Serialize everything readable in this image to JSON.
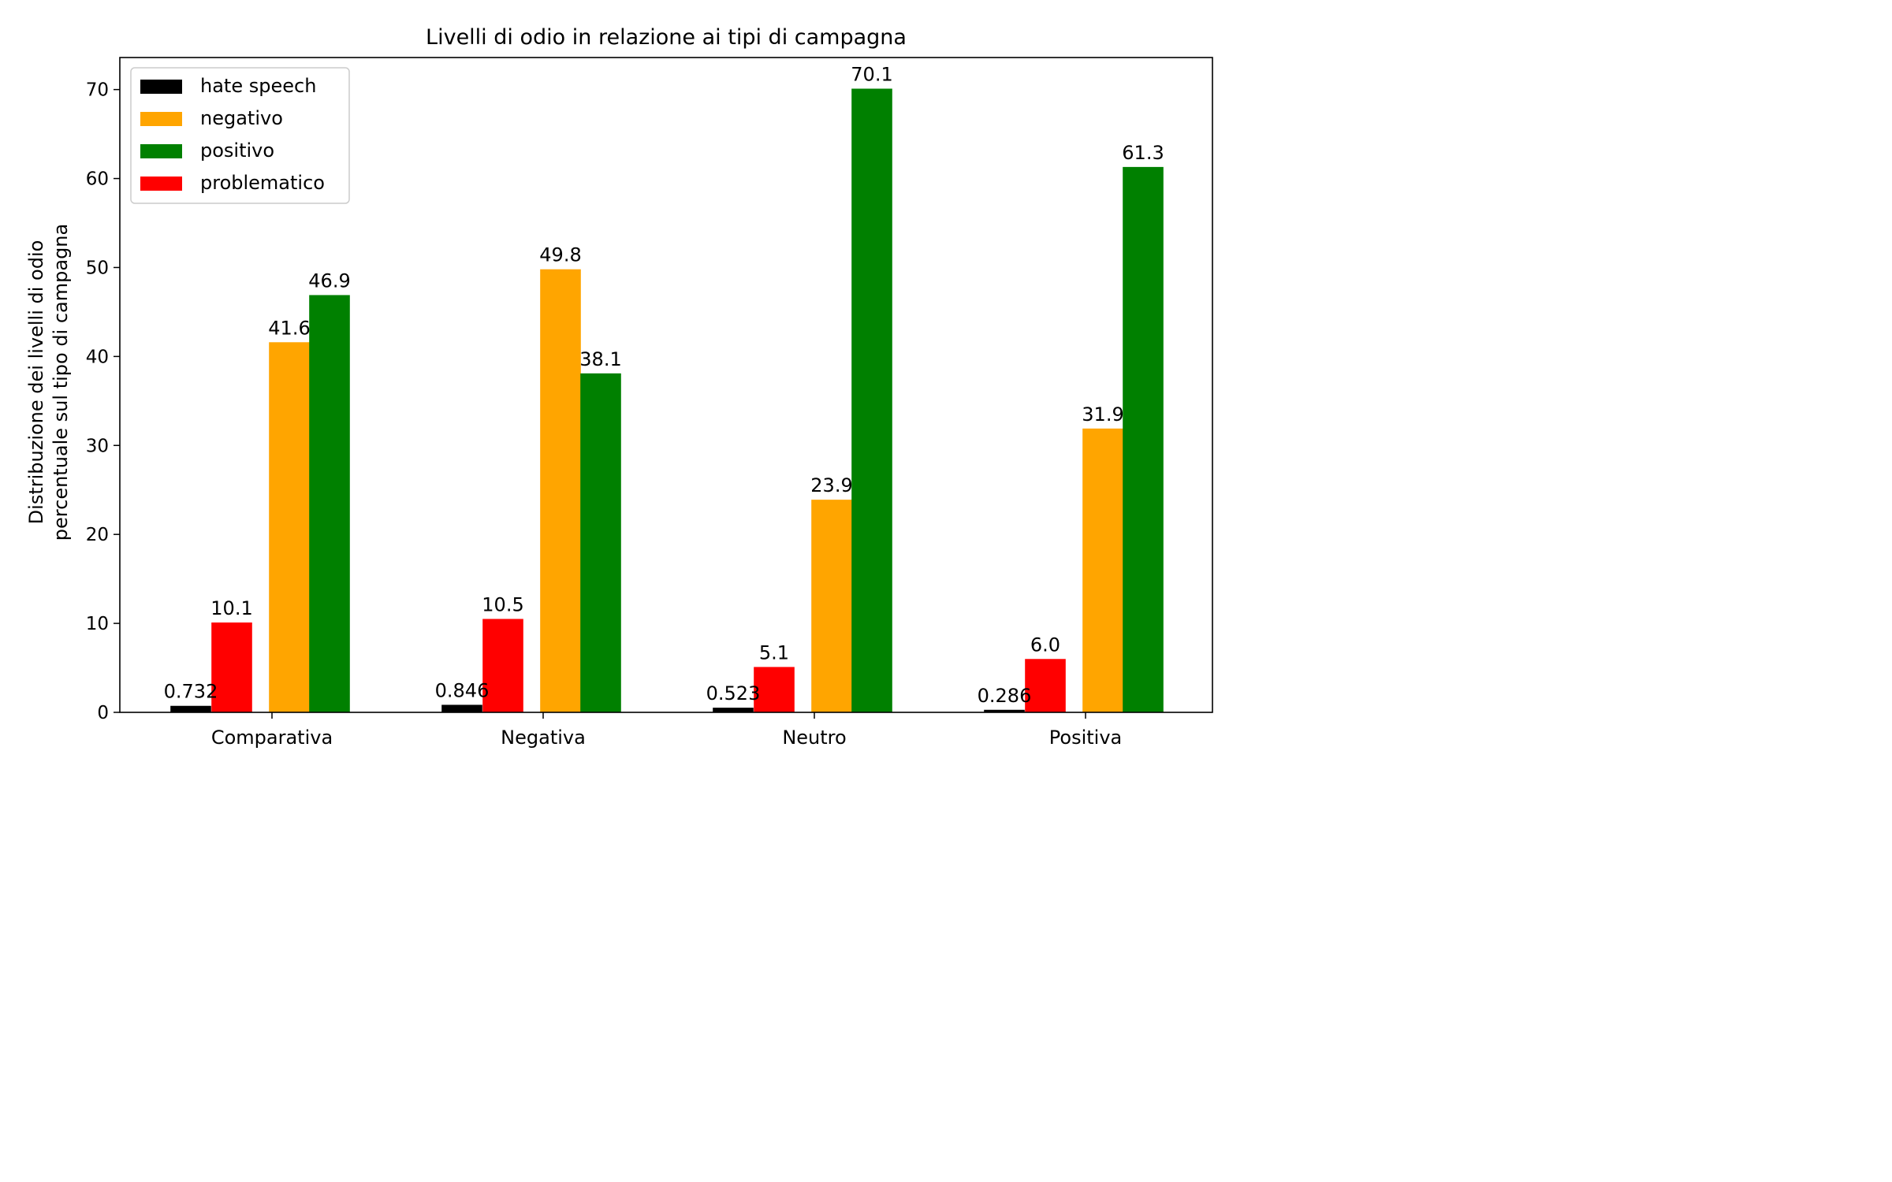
{
  "chart_data": {
    "type": "bar",
    "title": "Livelli di odio in relazione ai tipi di campagna",
    "xlabel": "",
    "ylabel_lines": [
      "Distribuzione dei livelli di odio",
      "percentuale sul tipo di campagna"
    ],
    "categories": [
      "Comparativa",
      "Negativa",
      "Neutro",
      "Positiva"
    ],
    "ylim": [
      0,
      73.6
    ],
    "yticks": [
      0,
      10,
      20,
      30,
      40,
      50,
      60,
      70
    ],
    "ytick_labels": [
      "0",
      "10",
      "20",
      "30",
      "40",
      "50",
      "60",
      "70"
    ],
    "grid": false,
    "legend_position": "top-left",
    "series": [
      {
        "name": "hate speech",
        "color": "#000000",
        "values": [
          0.732,
          0.846,
          0.523,
          0.286
        ],
        "labels": [
          "0.732",
          "0.846",
          "0.523",
          "0.286"
        ]
      },
      {
        "name": "problematico",
        "color": "#ff0000",
        "values": [
          10.1,
          10.5,
          5.1,
          6.0
        ],
        "labels": [
          "10.1",
          "10.5",
          "5.1",
          "6.0"
        ]
      },
      {
        "name": "negativo",
        "color": "#ffa500",
        "values": [
          41.6,
          49.8,
          23.9,
          31.9
        ],
        "labels": [
          "41.6",
          "49.8",
          "23.9",
          "31.9"
        ]
      },
      {
        "name": "positivo",
        "color": "#008000",
        "values": [
          46.9,
          38.1,
          70.1,
          61.3
        ],
        "labels": [
          "46.9",
          "38.1",
          "70.1",
          "61.3"
        ]
      }
    ],
    "legend_order": [
      "hate speech",
      "negativo",
      "positivo",
      "problematico"
    ]
  }
}
